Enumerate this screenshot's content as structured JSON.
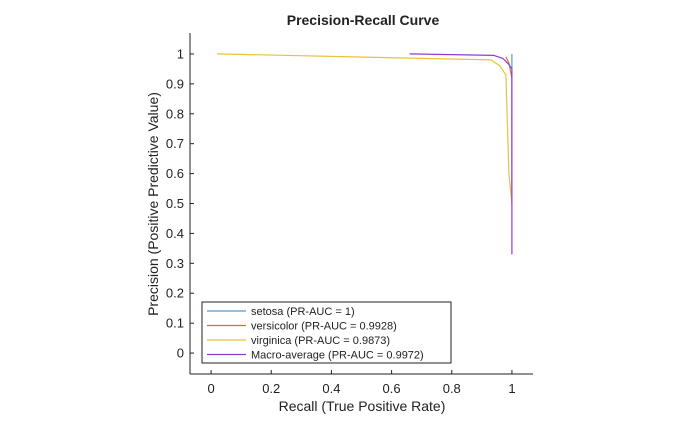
{
  "chart_data": {
    "type": "line",
    "title": "Precision-Recall Curve",
    "xlabel": "Recall (True Positive Rate)",
    "ylabel": "Precision (Positive Predictive Value)",
    "xlim": [
      -0.07,
      1.07
    ],
    "ylim": [
      -0.07,
      1.07
    ],
    "xticks": [
      "0",
      "0.2",
      "0.4",
      "0.6",
      "0.8",
      "1"
    ],
    "yticks": [
      "0",
      "0.1",
      "0.2",
      "0.3",
      "0.4",
      "0.5",
      "0.6",
      "0.7",
      "0.8",
      "0.9",
      "1"
    ],
    "grid": false,
    "legend_position": "bottom-left",
    "series": [
      {
        "name": "setosa (PR-AUC = 1)",
        "color": "#4b9cd3",
        "points": [
          [
            1.0,
            1.0
          ],
          [
            1.0,
            0.95
          ]
        ]
      },
      {
        "name": "versicolor (PR-AUC = 0.9928)",
        "color": "#e06a2a",
        "points": [
          [
            0.98,
            0.99
          ],
          [
            0.99,
            0.97
          ],
          [
            1.0,
            0.92
          ],
          [
            1.0,
            0.5
          ]
        ]
      },
      {
        "name": "virginica (PR-AUC = 0.9873)",
        "color": "#e8c23a",
        "points": [
          [
            0.02,
            1.0
          ],
          [
            0.93,
            0.98
          ],
          [
            0.96,
            0.96
          ],
          [
            0.98,
            0.93
          ],
          [
            0.99,
            0.6
          ],
          [
            1.0,
            0.5
          ]
        ]
      },
      {
        "name": "Macro-average (PR-AUC = 0.9972)",
        "color": "#8a3fd1",
        "points": [
          [
            0.66,
            1.0
          ],
          [
            0.94,
            0.995
          ],
          [
            0.97,
            0.985
          ],
          [
            0.99,
            0.965
          ],
          [
            1.0,
            0.95
          ],
          [
            1.0,
            0.33
          ]
        ]
      }
    ]
  }
}
